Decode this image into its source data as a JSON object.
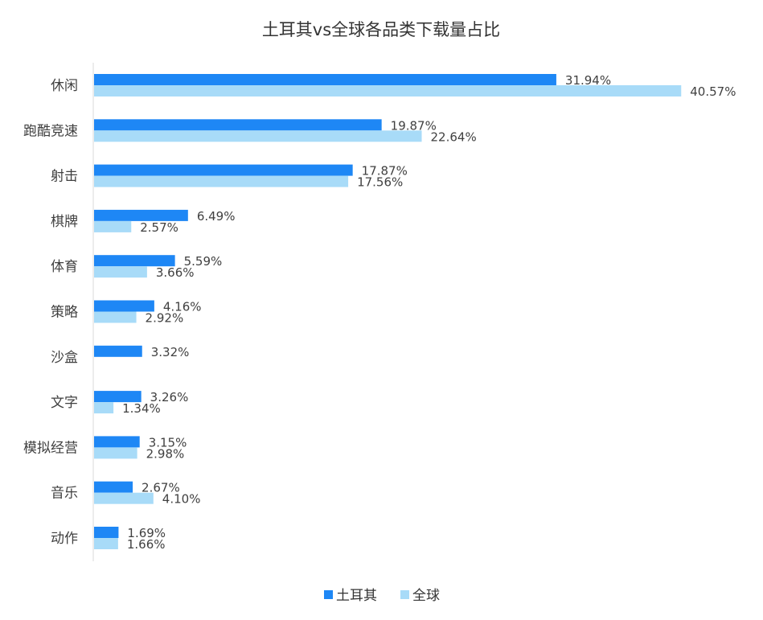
{
  "chart_data": {
    "type": "bar",
    "orientation": "horizontal",
    "title": "土耳其vs全球各品类下载量占比",
    "categories": [
      "休闲",
      "跑酷竞速",
      "射击",
      "棋牌",
      "体育",
      "策略",
      "沙盒",
      "文字",
      "模拟经营",
      "音乐",
      "动作"
    ],
    "series": [
      {
        "name": "土耳其",
        "color": "#1E87F5",
        "values": [
          31.94,
          19.87,
          17.87,
          6.49,
          5.59,
          4.16,
          3.32,
          3.26,
          3.15,
          2.67,
          1.69
        ],
        "labels": [
          "31.94%",
          "19.87%",
          "17.87%",
          "6.49%",
          "5.59%",
          "4.16%",
          "3.32%",
          "3.26%",
          "3.15%",
          "2.67%",
          "1.69%"
        ]
      },
      {
        "name": "全球",
        "color": "#A8DBF8",
        "values": [
          40.57,
          22.64,
          17.56,
          2.57,
          3.66,
          2.92,
          null,
          1.34,
          2.98,
          4.1,
          1.66
        ],
        "labels": [
          "40.57%",
          "22.64%",
          "17.56%",
          "2.57%",
          "3.66%",
          "2.92%",
          "",
          "1.34%",
          "2.98%",
          "4.10%",
          "1.66%"
        ]
      }
    ],
    "xlim": [
      0,
      41.5
    ],
    "grid": false,
    "legend_position": "bottom"
  }
}
